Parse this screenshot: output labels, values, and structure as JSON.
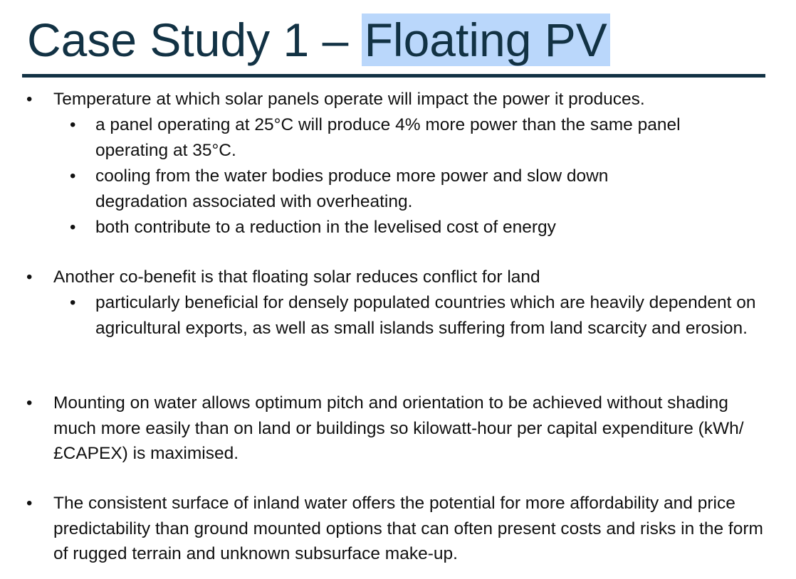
{
  "slide": {
    "title_prefix": "Case Study 1 – ",
    "title_highlight": "Floating PV",
    "bullet_glyph": "•",
    "bullets": [
      {
        "text": "Temperature at which solar panels operate will impact the power it produces.",
        "sub": [
          "a panel operating at 25°C will produce 4% more power than the same panel operating at 35°C.",
          "cooling from the water bodies produce more power and slow down degradation associated with overheating.",
          "both contribute to a reduction in the levelised cost of energy"
        ]
      },
      {
        "text": "Another co-benefit is that floating solar reduces conflict for land",
        "sub": [
          "particularly beneficial for densely populated countries which are heavily dependent on agricultural exports, as well as small islands suffering from land scarcity and erosion."
        ]
      },
      {
        "text": "Mounting on water allows optimum pitch and orientation to be achieved without shading much more easily than on land or buildings so kilowatt-hour per capital expenditure (kWh/£CAPEX) is maximised."
      },
      {
        "text": "The consistent surface of inland water offers the potential for more affordability and price predictability than ground mounted options that can often present costs and risks in the form of rugged terrain and unknown subsurface make-up."
      }
    ]
  },
  "colors": {
    "title": "#123244",
    "rule": "#123244",
    "highlight": "#bad7fb"
  }
}
